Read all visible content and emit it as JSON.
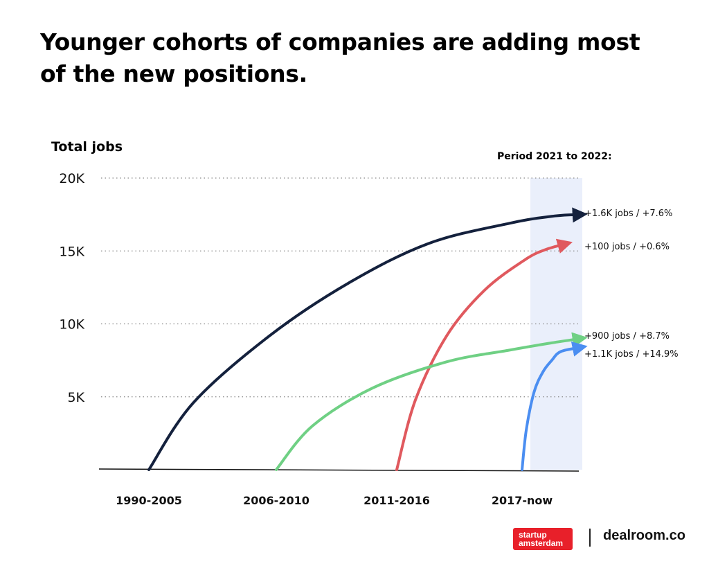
{
  "title": "Younger cohorts of companies are adding most of the new positions.",
  "chart_data": {
    "type": "line",
    "ylabel": "Total jobs",
    "period_label": "Period 2021 to 2022:",
    "ylim": [
      0,
      20000
    ],
    "y_ticks": [
      {
        "value": 5000,
        "label": "5K"
      },
      {
        "value": 10000,
        "label": "10K"
      },
      {
        "value": 15000,
        "label": "15K"
      },
      {
        "value": 20000,
        "label": "20K"
      }
    ],
    "categories": [
      "1990-2005",
      "2006-2010",
      "2011-2016",
      "2017-now"
    ],
    "series": [
      {
        "name": "1990-2005",
        "color": "#14213d",
        "change_label": "+1.6K jobs / +7.6%",
        "points": [
          [
            0,
            0
          ],
          [
            0.35,
            4600
          ],
          [
            0.95,
            9200
          ],
          [
            1.6,
            12800
          ],
          [
            2.25,
            15500
          ],
          [
            2.9,
            16900
          ],
          [
            3.55,
            17400
          ],
          [
            4.1,
            17500
          ]
        ]
      },
      {
        "name": "2011-2016",
        "color": "#e0595e",
        "change_label": "+100 jobs / +0.6%",
        "points": [
          [
            2.0,
            0
          ],
          [
            2.15,
            4800
          ],
          [
            2.4,
            9200
          ],
          [
            2.7,
            12300
          ],
          [
            3.05,
            14400
          ],
          [
            3.4,
            15100
          ],
          [
            3.75,
            15500
          ]
        ]
      },
      {
        "name": "2006-2010",
        "color": "#6fd084",
        "change_label": "+900 jobs / +8.7%",
        "points": [
          [
            1.0,
            0
          ],
          [
            1.3,
            3000
          ],
          [
            1.8,
            5600
          ],
          [
            2.4,
            7400
          ],
          [
            2.9,
            8200
          ],
          [
            3.5,
            8700
          ],
          [
            4.1,
            9000
          ]
        ]
      },
      {
        "name": "2017-now",
        "color": "#4b8ef1",
        "change_label": "+1.1K jobs / +14.9%",
        "points": [
          [
            3.0,
            0
          ],
          [
            3.07,
            2700
          ],
          [
            3.2,
            5300
          ],
          [
            3.35,
            6700
          ],
          [
            3.5,
            7500
          ],
          [
            3.65,
            8100
          ],
          [
            4.1,
            8400
          ]
        ]
      }
    ],
    "highlight_region": "2021-2022",
    "grid": true
  },
  "branding": {
    "partner_logo_line1": "startup",
    "partner_logo_line2": "amsterdam",
    "brand": "dealroom.co"
  }
}
